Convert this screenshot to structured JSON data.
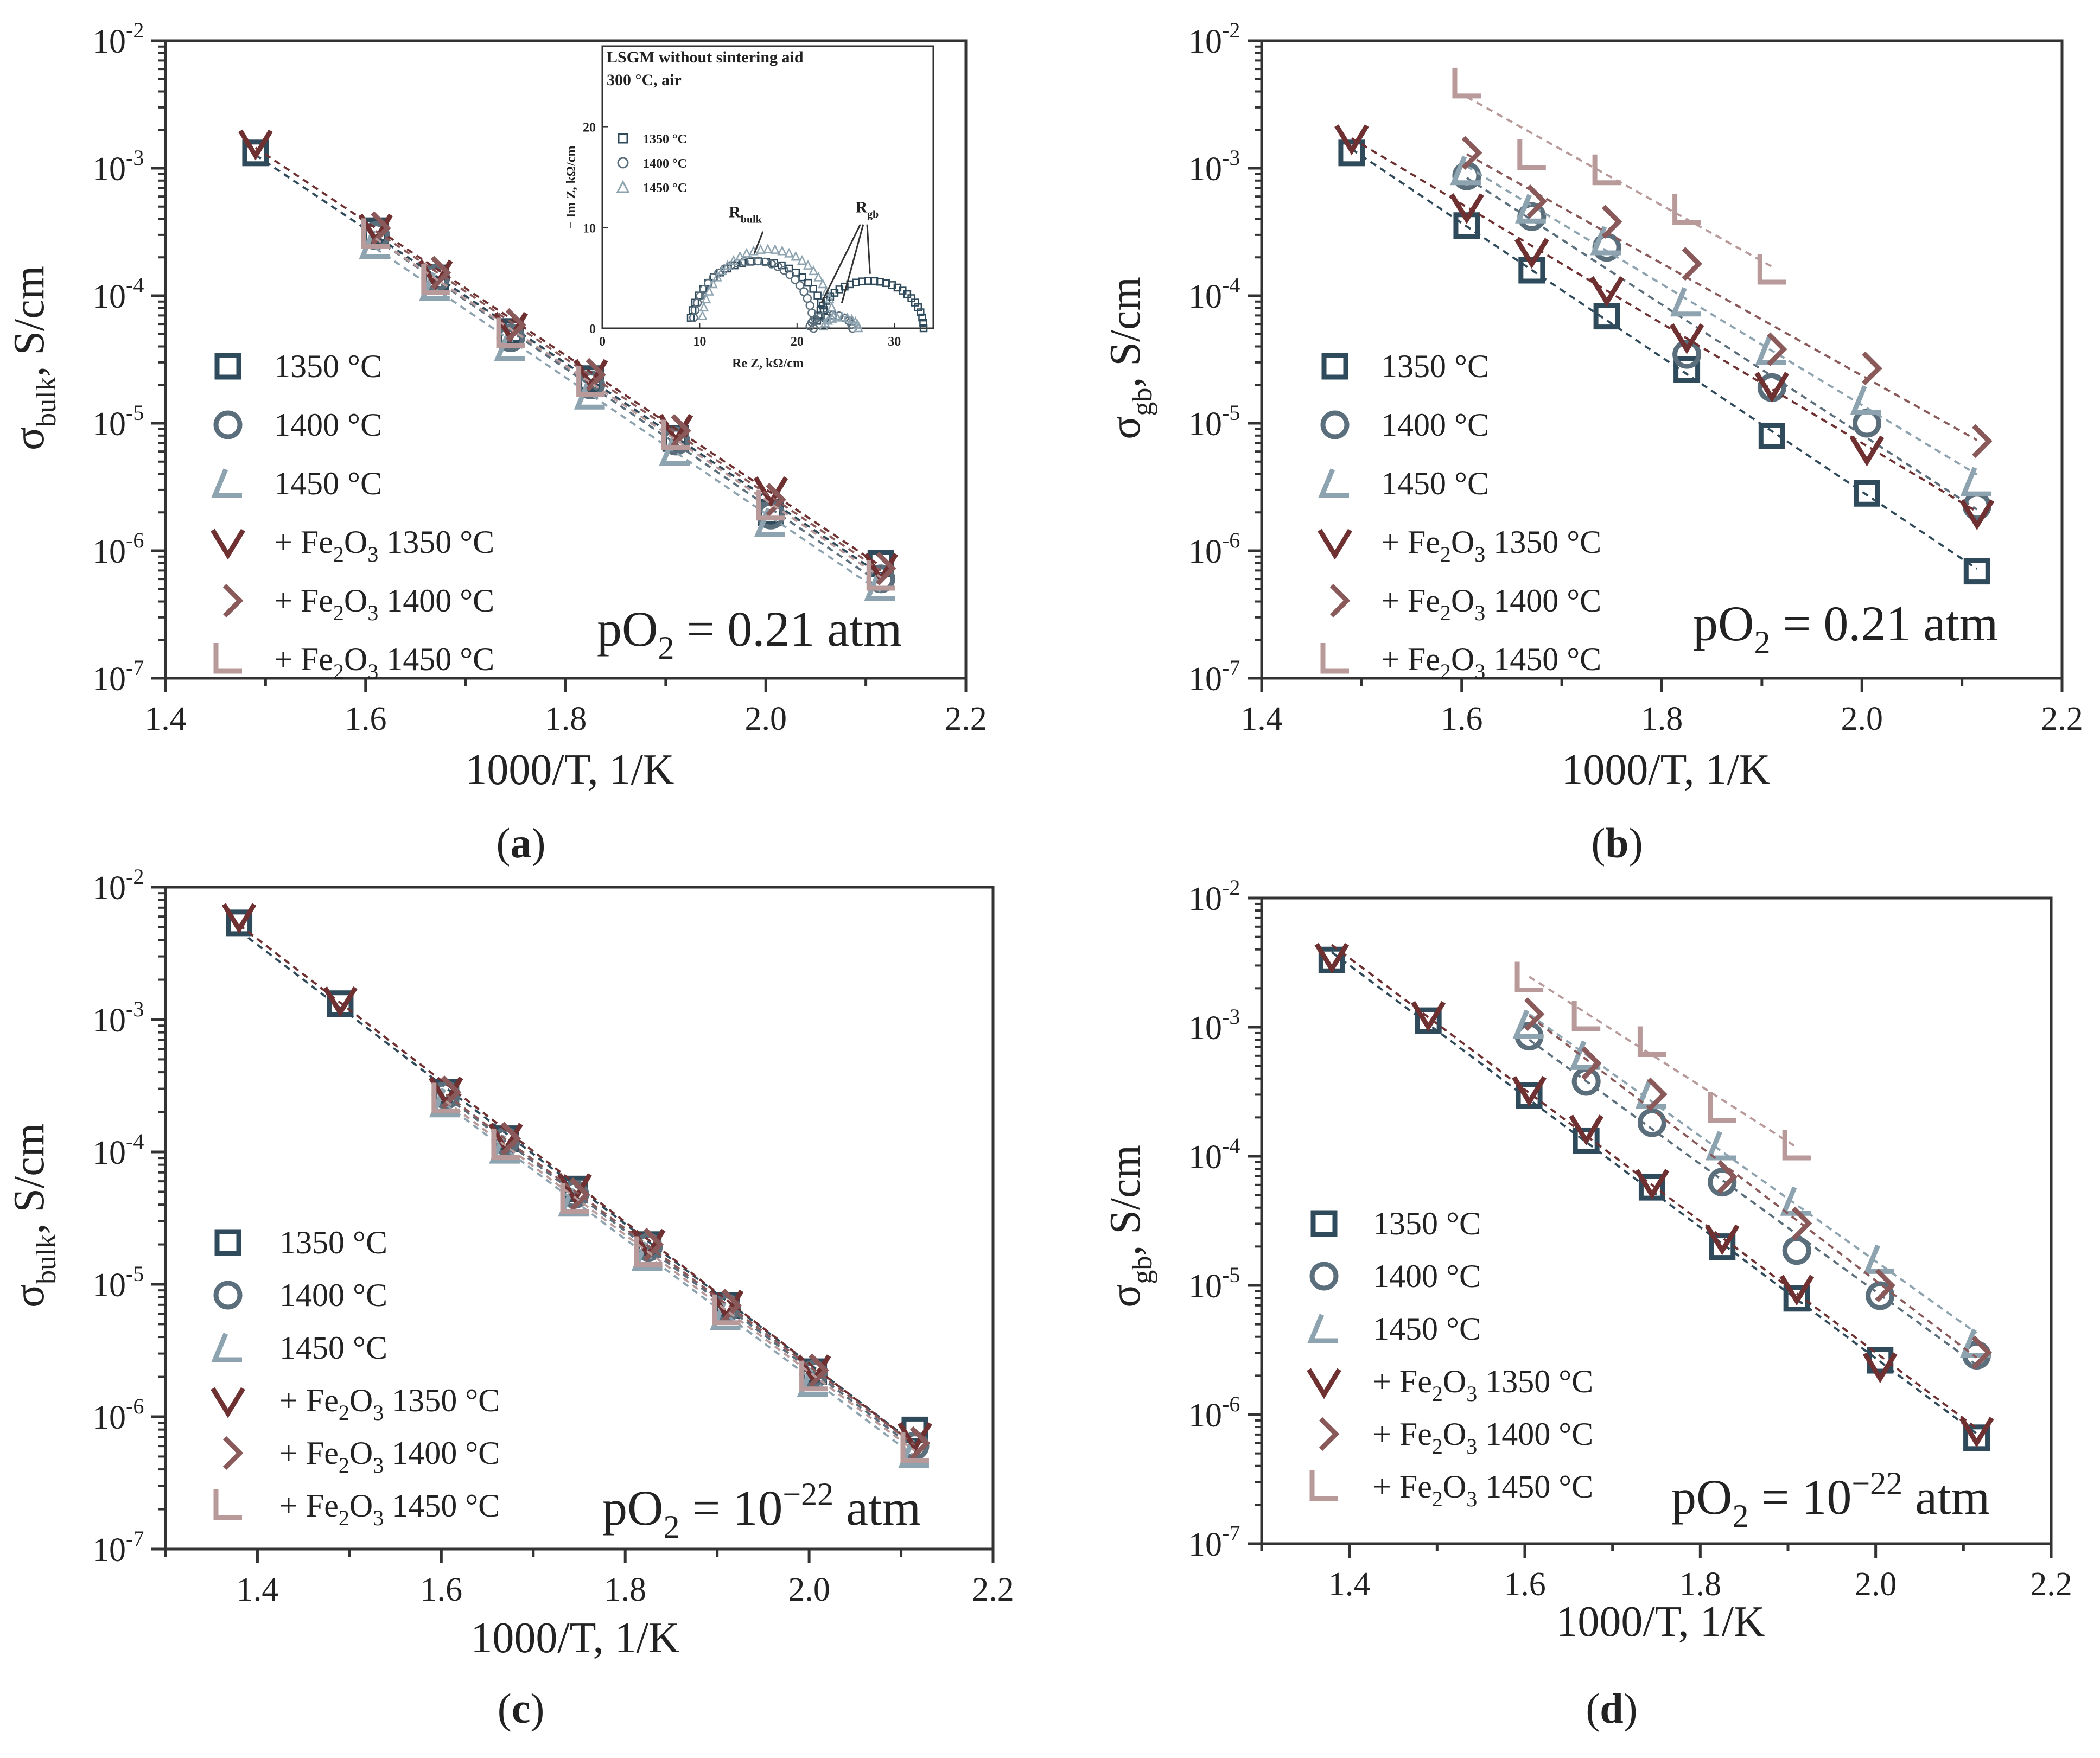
{
  "colors": {
    "s1350": "#2e4a5b",
    "s1400": "#5b6e7b",
    "s1450": "#8ea3b0",
    "f1350": "#6e3030",
    "f1400": "#8a5a5a",
    "f1450": "#b89a9a",
    "axis": "#333333"
  },
  "legend": {
    "e1350": "1350 °C",
    "e1400": "1400 °C",
    "e1450": "1450 °C",
    "plus": "+ Fe",
    "sub2": "2",
    "o": "O",
    "sub3": "3",
    "t1350": " 1350 °C",
    "t1400": " 1400 °C",
    "t1450": " 1450 °C"
  },
  "axes": {
    "sigma": "σ",
    "bulk_sub": "bulk",
    "gb_sub": "gb",
    "units": ", S/cm",
    "xlabel": "1000/T, 1/K",
    "pow_base": "10",
    "po2_p": "pO",
    "po2_sub": "2",
    "po2_a": " = 0.21 atm",
    "po2_c_mid": " = 10",
    "po2_c_exp": "−22",
    "po2_c_end": " atm"
  },
  "captions": [
    "(a)",
    "(b)",
    "(c)",
    "(d)"
  ],
  "caption_parts": {
    "a": {
      "open": "(",
      "letter": "a",
      "close": ")"
    },
    "b": {
      "open": "(",
      "letter": "b",
      "close": ")"
    },
    "c": {
      "open": "(",
      "letter": "c",
      "close": ")"
    },
    "d": {
      "open": "(",
      "letter": "d",
      "close": ")"
    }
  },
  "inset": {
    "title_line1": "LSGM without sintering aid",
    "title_line2": "300 °C, air",
    "legend": [
      "1350 °C",
      "1400 °C",
      "1450 °C"
    ],
    "ylabel": "− Im Z, kΩ/cm",
    "xlabel": "Re Z, kΩ/cm",
    "r_bulk": "R",
    "r_bulk_sub": "bulk",
    "r_gb": "R",
    "r_gb_sub": "gb",
    "xticks": [
      "0",
      "10",
      "20",
      "30"
    ],
    "yticks": [
      "0",
      "10",
      "20"
    ]
  },
  "chart_data": [
    {
      "id": "a",
      "type": "scatter",
      "title": "",
      "xlabel": "1000/T, 1/K",
      "ylabel": "σbulk, S/cm",
      "yscale": "log",
      "xlim": [
        1.4,
        2.2
      ],
      "ylim": [
        -7,
        -2
      ],
      "xticks": [
        "1.4",
        "1.6",
        "1.8",
        "2.0",
        "2.2"
      ],
      "yticks": [
        -7,
        -6,
        -5,
        -4,
        -3,
        -2
      ],
      "annotation": "pO2 = 0.21 atm",
      "series": [
        {
          "name": "1350 °C",
          "marker": "square",
          "x": [
            1.49,
            1.61,
            1.67,
            1.745,
            1.825,
            1.91,
            2.005,
            2.115
          ],
          "log_y": [
            -2.88,
            -3.49,
            -3.86,
            -4.28,
            -4.65,
            -5.12,
            -5.7,
            -6.1
          ]
        },
        {
          "name": "1400 °C",
          "marker": "circle",
          "x": [
            1.61,
            1.67,
            1.745,
            1.825,
            1.91,
            2.005,
            2.115
          ],
          "log_y": [
            -3.53,
            -3.86,
            -4.33,
            -4.7,
            -5.14,
            -5.72,
            -6.22
          ]
        },
        {
          "name": "1450 °C",
          "marker": "angle",
          "x": [
            1.61,
            1.67,
            1.745,
            1.825,
            1.91,
            2.005,
            2.115
          ],
          "log_y": [
            -3.6,
            -3.93,
            -4.4,
            -4.78,
            -5.22,
            -5.78,
            -6.28
          ]
        },
        {
          "name": "+ Fe2O3 1350 °C",
          "marker": "vee",
          "x": [
            1.49,
            1.61,
            1.67,
            1.745,
            1.825,
            1.91,
            2.005,
            2.115
          ],
          "log_y": [
            -2.8,
            -3.46,
            -3.82,
            -4.23,
            -4.6,
            -5.03,
            -5.52,
            -6.12
          ]
        },
        {
          "name": "+ Fe2O3 1400 °C",
          "marker": "diamond",
          "x": [
            1.61,
            1.67,
            1.745,
            1.825,
            1.91,
            2.005,
            2.115
          ],
          "log_y": [
            -3.47,
            -3.82,
            -4.23,
            -4.62,
            -5.06,
            -5.6,
            -6.14
          ]
        },
        {
          "name": "+ Fe2O3 1450 °C",
          "marker": "angle",
          "x": [
            1.61,
            1.67,
            1.745,
            1.825,
            1.91,
            2.005,
            2.115
          ],
          "log_y": [
            -3.52,
            -3.88,
            -4.3,
            -4.68,
            -5.1,
            -5.65,
            -6.2
          ]
        }
      ]
    },
    {
      "id": "b",
      "type": "scatter",
      "xlabel": "1000/T, 1/K",
      "ylabel": "σgb, S/cm",
      "yscale": "log",
      "xlim": [
        1.4,
        2.2
      ],
      "ylim": [
        -7,
        -2
      ],
      "xticks": [
        "1.4",
        "1.6",
        "1.8",
        "2.0",
        "2.2"
      ],
      "yticks": [
        -7,
        -6,
        -5,
        -4,
        -3,
        -2
      ],
      "annotation": "pO2 = 0.21 atm",
      "series": [
        {
          "name": "1350 °C",
          "marker": "square",
          "x": [
            1.49,
            1.605,
            1.67,
            1.745,
            1.825,
            1.91,
            2.005,
            2.115
          ],
          "log_y": [
            -2.88,
            -3.45,
            -3.8,
            -4.16,
            -4.58,
            -5.1,
            -5.55,
            -6.16
          ]
        },
        {
          "name": "1400 °C",
          "marker": "circle",
          "x": [
            1.605,
            1.67,
            1.745,
            1.825,
            1.91,
            2.005,
            2.115
          ],
          "log_y": [
            -3.06,
            -3.38,
            -3.62,
            -4.46,
            -4.72,
            -5.0,
            -5.65
          ]
        },
        {
          "name": "1450 °C",
          "marker": "angle",
          "x": [
            1.605,
            1.67,
            1.745,
            1.825,
            1.91,
            2.005,
            2.115
          ],
          "log_y": [
            -3.02,
            -3.32,
            -3.57,
            -4.05,
            -4.43,
            -4.82,
            -5.46
          ]
        },
        {
          "name": "+ Fe2O3 1350 °C",
          "marker": "vee",
          "x": [
            1.49,
            1.605,
            1.67,
            1.745,
            1.825,
            1.91,
            2.005,
            2.115
          ],
          "log_y": [
            -2.76,
            -3.3,
            -3.65,
            -3.95,
            -4.32,
            -4.7,
            -5.2,
            -5.7
          ]
        },
        {
          "name": "+ Fe2O3 1400 °C",
          "marker": "diamond",
          "x": [
            1.605,
            1.67,
            1.745,
            1.825,
            1.91,
            2.005,
            2.115
          ],
          "log_y": [
            -2.88,
            -3.26,
            -3.42,
            -3.75,
            -4.42,
            -4.57,
            -5.14
          ]
        },
        {
          "name": "+ Fe2O3 1450 °C",
          "marker": "angle",
          "x": [
            1.605,
            1.67,
            1.745,
            1.825,
            1.91
          ],
          "log_y": [
            -2.34,
            -2.9,
            -3.02,
            -3.33,
            -3.8
          ]
        }
      ]
    },
    {
      "id": "c",
      "type": "scatter",
      "xlabel": "1000/T, 1/K",
      "ylabel": "σbulk, S/cm",
      "yscale": "log",
      "xlim": [
        1.3,
        2.2
      ],
      "ylim": [
        -7,
        -2
      ],
      "xticks": [
        "1.4",
        "1.6",
        "1.8",
        "2.0",
        "2.2"
      ],
      "yticks": [
        -7,
        -6,
        -5,
        -4,
        -3,
        -2
      ],
      "annotation": "pO2 = 10^-22 atm",
      "series": [
        {
          "name": "1350 °C",
          "marker": "square",
          "x": [
            1.38,
            1.49,
            1.605,
            1.67,
            1.745,
            1.825,
            1.91,
            2.005,
            2.115
          ],
          "log_y": [
            -2.27,
            -2.88,
            -3.55,
            -3.9,
            -4.28,
            -4.7,
            -5.16,
            -5.66,
            -6.1
          ]
        },
        {
          "name": "1400 °C",
          "marker": "circle",
          "x": [
            1.605,
            1.67,
            1.745,
            1.825,
            1.91,
            2.005,
            2.115
          ],
          "log_y": [
            -3.57,
            -3.92,
            -4.32,
            -4.72,
            -5.18,
            -5.68,
            -6.22
          ]
        },
        {
          "name": "1450 °C",
          "marker": "angle",
          "x": [
            1.605,
            1.67,
            1.745,
            1.825,
            1.91,
            2.005,
            2.115
          ],
          "log_y": [
            -3.63,
            -3.98,
            -4.38,
            -4.79,
            -5.24,
            -5.74,
            -6.28
          ]
        },
        {
          "name": "+ Fe2O3 1350 °C",
          "marker": "vee",
          "x": [
            1.38,
            1.49,
            1.605,
            1.67,
            1.745,
            1.825,
            1.91,
            2.005,
            2.115
          ],
          "log_y": [
            -2.22,
            -2.85,
            -3.53,
            -3.88,
            -4.26,
            -4.68,
            -5.14,
            -5.63,
            -6.14
          ]
        },
        {
          "name": "+ Fe2O3 1400 °C",
          "marker": "diamond",
          "x": [
            1.605,
            1.67,
            1.745,
            1.825,
            1.91,
            2.005,
            2.115
          ],
          "log_y": [
            -3.55,
            -3.9,
            -4.32,
            -4.7,
            -5.16,
            -5.65,
            -6.2
          ]
        },
        {
          "name": "+ Fe2O3 1450 °C",
          "marker": "angle",
          "x": [
            1.605,
            1.67,
            1.745,
            1.825,
            1.91,
            2.005,
            2.115
          ],
          "log_y": [
            -3.6,
            -3.95,
            -4.36,
            -4.76,
            -5.2,
            -5.7,
            -6.24
          ]
        }
      ]
    },
    {
      "id": "d",
      "type": "scatter",
      "xlabel": "1000/T, 1/K",
      "ylabel": "σgb, S/cm",
      "yscale": "log",
      "xlim": [
        1.3,
        2.2
      ],
      "ylim": [
        -7,
        -2
      ],
      "xticks": [
        "1.4",
        "1.6",
        "1.8",
        "2.0",
        "2.2"
      ],
      "yticks": [
        -7,
        -6,
        -5,
        -4,
        -3,
        -2
      ],
      "annotation": "pO2 = 10^-22 atm",
      "series": [
        {
          "name": "1350 °C",
          "marker": "square",
          "x": [
            1.38,
            1.49,
            1.605,
            1.67,
            1.745,
            1.825,
            1.91,
            2.005,
            2.115
          ],
          "log_y": [
            -2.48,
            -2.95,
            -3.53,
            -3.88,
            -4.24,
            -4.7,
            -5.1,
            -5.58,
            -6.18
          ]
        },
        {
          "name": "1400 °C",
          "marker": "circle",
          "x": [
            1.605,
            1.67,
            1.745,
            1.825,
            1.91,
            2.005,
            2.115
          ],
          "log_y": [
            -3.07,
            -3.42,
            -3.74,
            -4.2,
            -4.73,
            -5.08,
            -5.54
          ]
        },
        {
          "name": "1450 °C",
          "marker": "angle",
          "x": [
            1.605,
            1.67,
            1.745,
            1.825,
            1.91,
            2.005,
            2.115
          ],
          "log_y": [
            -2.98,
            -3.22,
            -3.52,
            -3.92,
            -4.35,
            -4.8,
            -5.45
          ]
        },
        {
          "name": "+ Fe2O3 1350 °C",
          "marker": "vee",
          "x": [
            1.38,
            1.49,
            1.605,
            1.67,
            1.745,
            1.825,
            1.91,
            2.005,
            2.115
          ],
          "log_y": [
            -2.45,
            -2.9,
            -3.48,
            -3.78,
            -4.2,
            -4.63,
            -5.02,
            -5.62,
            -6.12
          ]
        },
        {
          "name": "+ Fe2O3 1400 °C",
          "marker": "diamond",
          "x": [
            1.605,
            1.67,
            1.745,
            1.825,
            1.91,
            2.005,
            2.115
          ],
          "log_y": [
            -2.9,
            -3.28,
            -3.52,
            -4.16,
            -4.52,
            -5.0,
            -5.52
          ]
        },
        {
          "name": "+ Fe2O3 1450 °C",
          "marker": "angle",
          "x": [
            1.605,
            1.67,
            1.745,
            1.825,
            1.91
          ],
          "log_y": [
            -2.62,
            -2.92,
            -3.12,
            -3.63,
            -3.92
          ]
        }
      ]
    }
  ]
}
